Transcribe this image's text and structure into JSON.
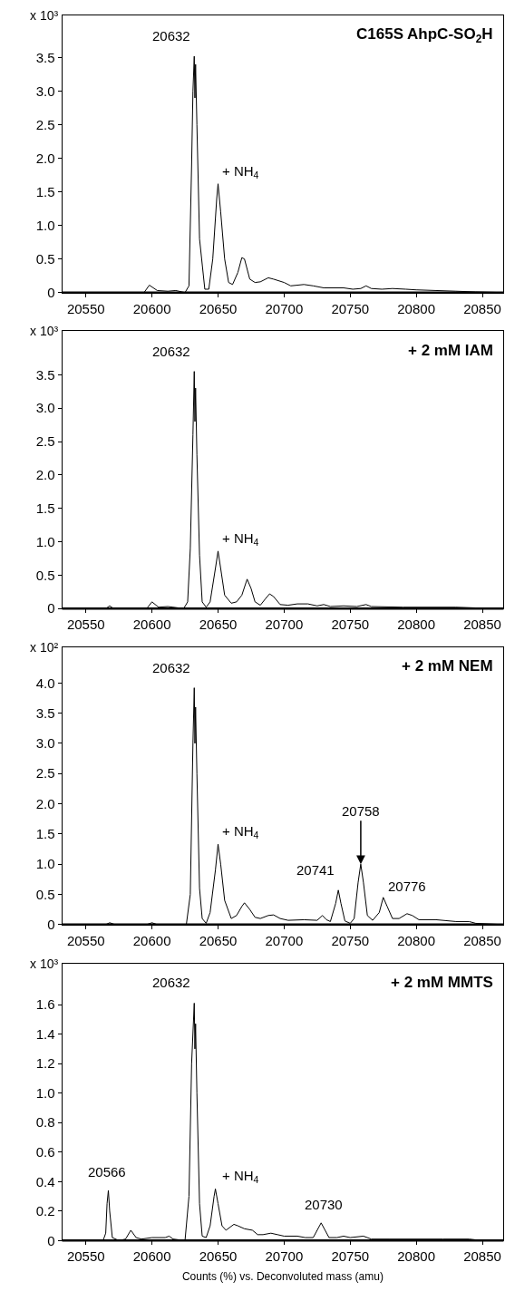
{
  "chart_data": [
    {
      "type": "line",
      "title": "C165S AhpC-SO$_{2}$H",
      "ylabel": "x 10³",
      "color": "#000000",
      "grid": false,
      "xlim": [
        20532,
        20866
      ],
      "ylim": [
        0,
        4.13
      ],
      "xticks": [
        20550,
        20600,
        20650,
        20700,
        20750,
        20800,
        20850
      ],
      "yticks": [
        0,
        0.5,
        {
          "value": 1,
          "label": "1.0"
        },
        1.5,
        {
          "value": 2,
          "label": "2.0"
        },
        2.5,
        {
          "value": 3,
          "label": "3.0"
        },
        3.5
      ],
      "x": [
        20532,
        20594,
        20598,
        20604,
        20612,
        20618,
        20625,
        20628,
        20630,
        20631,
        20632,
        20632.5,
        20633,
        20634,
        20636,
        20640,
        20643,
        20646,
        20649,
        20650,
        20652,
        20655,
        20658,
        20661,
        20665,
        20668,
        20670,
        20674,
        20678,
        20682,
        20688,
        20692,
        20700,
        20705,
        20715,
        20722,
        20730,
        20745,
        20752,
        20758,
        20762,
        20766,
        20774,
        20782,
        20792,
        20800,
        20815,
        20830,
        20845,
        20866
      ],
      "values": [
        0,
        0,
        0.11,
        0.03,
        0.02,
        0.03,
        0,
        0.1,
        1.9,
        3.0,
        3.52,
        2.9,
        3.4,
        2.5,
        0.8,
        0.05,
        0.05,
        0.5,
        1.4,
        1.62,
        1.2,
        0.5,
        0.15,
        0.12,
        0.3,
        0.52,
        0.5,
        0.2,
        0.15,
        0.16,
        0.22,
        0.2,
        0.15,
        0.1,
        0.12,
        0.1,
        0.07,
        0.07,
        0.05,
        0.06,
        0.1,
        0.06,
        0.05,
        0.06,
        0.05,
        0.04,
        0.03,
        0.02,
        0.01,
        0
      ],
      "annotations": [
        {
          "text": "20632",
          "x": 20632,
          "y": 3.52
        },
        {
          "text": "+ NH$_{4}$",
          "x": 20650,
          "y": 1.62
        }
      ]
    },
    {
      "type": "line",
      "title": "+ 2 mM IAM",
      "ylabel": "x 10³",
      "color": "#000000",
      "grid": false,
      "xlim": [
        20532,
        20866
      ],
      "ylim": [
        0,
        4.15
      ],
      "xticks": [
        20550,
        20600,
        20650,
        20700,
        20750,
        20800,
        20850
      ],
      "yticks": [
        0,
        0.5,
        {
          "value": 1,
          "label": "1.0"
        },
        1.5,
        {
          "value": 2,
          "label": "2.0"
        },
        2.5,
        {
          "value": 3,
          "label": "3.0"
        },
        3.5
      ],
      "x": [
        20532,
        20565,
        20568,
        20571,
        20596,
        20600,
        20605,
        20612,
        20616,
        20624,
        20627,
        20629,
        20631,
        20632,
        20632.5,
        20633,
        20634,
        20636,
        20638,
        20641,
        20644,
        20648,
        20650,
        20652,
        20655,
        20660,
        20664,
        20668,
        20672,
        20675,
        20678,
        20682,
        20686,
        20689,
        20692,
        20697,
        20703,
        20710,
        20718,
        20725,
        20730,
        20735,
        20745,
        20755,
        20762,
        20766,
        20790,
        20830,
        20845,
        20866
      ],
      "values": [
        0,
        0,
        0.04,
        0,
        0,
        0.1,
        0.02,
        0.03,
        0.02,
        0,
        0.1,
        0.9,
        2.6,
        3.55,
        2.8,
        3.3,
        2.3,
        0.8,
        0.1,
        0.02,
        0.1,
        0.6,
        0.86,
        0.6,
        0.2,
        0.08,
        0.1,
        0.2,
        0.44,
        0.3,
        0.1,
        0.05,
        0.15,
        0.22,
        0.18,
        0.06,
        0.05,
        0.07,
        0.07,
        0.04,
        0.06,
        0.03,
        0.04,
        0.03,
        0.06,
        0.03,
        0.02,
        0.02,
        0.01,
        0
      ],
      "annotations": [
        {
          "text": "20632",
          "x": 20632,
          "y": 3.55
        },
        {
          "text": "+ NH$_{4}$",
          "x": 20650,
          "y": 0.86
        }
      ]
    },
    {
      "type": "line",
      "title": "+ 2 mM NEM",
      "ylabel": "x 10²",
      "color": "#000000",
      "grid": false,
      "xlim": [
        20532,
        20866
      ],
      "ylim": [
        0,
        4.59
      ],
      "xticks": [
        20550,
        20600,
        20650,
        20700,
        20750,
        20800,
        20850
      ],
      "yticks": [
        0,
        0.5,
        {
          "value": 1,
          "label": "1.0"
        },
        1.5,
        {
          "value": 2,
          "label": "2.0"
        },
        2.5,
        {
          "value": 3,
          "label": "3.0"
        },
        3.5,
        {
          "value": 4,
          "label": "4.0"
        }
      ],
      "x": [
        20532,
        20565,
        20568,
        20572,
        20596,
        20600,
        20604,
        20626,
        20629,
        20631,
        20632,
        20632.5,
        20633,
        20634,
        20636,
        20638,
        20641,
        20644,
        20648,
        20650,
        20652,
        20655,
        20660,
        20664,
        20668,
        20670,
        20674,
        20678,
        20682,
        20688,
        20692,
        20697,
        20703,
        20715,
        20725,
        20729,
        20732,
        20735,
        20739,
        20741,
        20743,
        20746,
        20750,
        20753,
        20756,
        20758,
        20760,
        20763,
        20767,
        20772,
        20775,
        20778,
        20782,
        20787,
        20793,
        20797,
        20802,
        20815,
        20830,
        20840,
        20845,
        20866
      ],
      "values": [
        0,
        0,
        0.03,
        0,
        0,
        0.03,
        0,
        0,
        0.5,
        3.0,
        3.92,
        3.0,
        3.6,
        2.5,
        0.6,
        0.1,
        0.02,
        0.2,
        0.9,
        1.33,
        1.0,
        0.4,
        0.1,
        0.15,
        0.3,
        0.36,
        0.25,
        0.12,
        0.1,
        0.15,
        0.16,
        0.1,
        0.07,
        0.08,
        0.07,
        0.15,
        0.08,
        0.05,
        0.35,
        0.57,
        0.35,
        0.06,
        0.02,
        0.1,
        0.7,
        1.0,
        0.7,
        0.15,
        0.07,
        0.2,
        0.45,
        0.3,
        0.1,
        0.1,
        0.18,
        0.15,
        0.08,
        0.08,
        0.05,
        0.05,
        0.02,
        0
      ],
      "annotations": [
        {
          "text": "20632",
          "x": 20632,
          "y": 3.92
        },
        {
          "text": "+ NH$_{4}$",
          "x": 20650,
          "y": 1.33
        },
        {
          "text": "20741",
          "x": 20741,
          "y": 0.57
        },
        {
          "text": "20758",
          "x": 20758,
          "y": 1.0
        },
        {
          "text": "20776",
          "x": 20776,
          "y": 0.45
        }
      ]
    },
    {
      "type": "line",
      "title": "+ 2 mM MMTS",
      "ylabel": "x 10³",
      "xlabel": "Counts (%) vs. Deconvoluted mass (amu)",
      "color": "#000000",
      "grid": false,
      "xlim": [
        20532,
        20866
      ],
      "ylim": [
        0,
        1.88
      ],
      "xticks": [
        20550,
        20600,
        20650,
        20700,
        20750,
        20800,
        20850
      ],
      "yticks": [
        0,
        0.2,
        0.4,
        0.6,
        0.8,
        {
          "value": 1,
          "label": "1.0"
        },
        1.2,
        1.4,
        1.6
      ],
      "x": [
        20532,
        20563,
        20565,
        20566,
        20567,
        20568,
        20570,
        20575,
        20580,
        20584,
        20588,
        20592,
        20600,
        20610,
        20613,
        20616,
        20625,
        20628,
        20630,
        20632,
        20632.5,
        20633,
        20634,
        20636,
        20638,
        20641,
        20644,
        20647,
        20648,
        20650,
        20653,
        20656,
        20662,
        20665,
        20670,
        20676,
        20680,
        20684,
        20690,
        20695,
        20700,
        20710,
        20716,
        20722,
        20728,
        20731,
        20734,
        20740,
        20745,
        20750,
        20760,
        20766,
        20780,
        20820,
        20840,
        20850,
        20866
      ],
      "values": [
        0,
        0,
        0.05,
        0.25,
        0.34,
        0.2,
        0.02,
        0,
        0.01,
        0.07,
        0.02,
        0.01,
        0.02,
        0.02,
        0.03,
        0.01,
        0,
        0.3,
        1.2,
        1.61,
        1.3,
        1.47,
        1.0,
        0.25,
        0.03,
        0.02,
        0.1,
        0.3,
        0.35,
        0.25,
        0.1,
        0.07,
        0.11,
        0.1,
        0.08,
        0.07,
        0.04,
        0.04,
        0.05,
        0.04,
        0.03,
        0.03,
        0.02,
        0.02,
        0.12,
        0.07,
        0.02,
        0.02,
        0.03,
        0.02,
        0.03,
        0.01,
        0.01,
        0.01,
        0.01,
        0,
        0
      ],
      "annotations": [
        {
          "text": "20566",
          "x": 20566,
          "y": 0.34
        },
        {
          "text": "20632",
          "x": 20632,
          "y": 1.61
        },
        {
          "text": "+ NH$_{4}$",
          "x": 20650,
          "y": 0.35
        },
        {
          "text": "20730",
          "x": 20730,
          "y": 0.12
        }
      ]
    }
  ]
}
